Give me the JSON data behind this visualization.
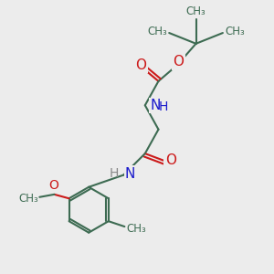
{
  "bg_color": "#ececec",
  "bond_color": "#3d6b52",
  "bond_width": 1.5,
  "atom_colors": {
    "N": "#1a1acc",
    "O": "#cc1a1a",
    "C": "#3d6b52"
  },
  "font_size": 10,
  "fig_size": [
    3.0,
    3.0
  ],
  "dpi": 100,
  "xlim": [
    0,
    10
  ],
  "ylim": [
    0,
    10
  ]
}
